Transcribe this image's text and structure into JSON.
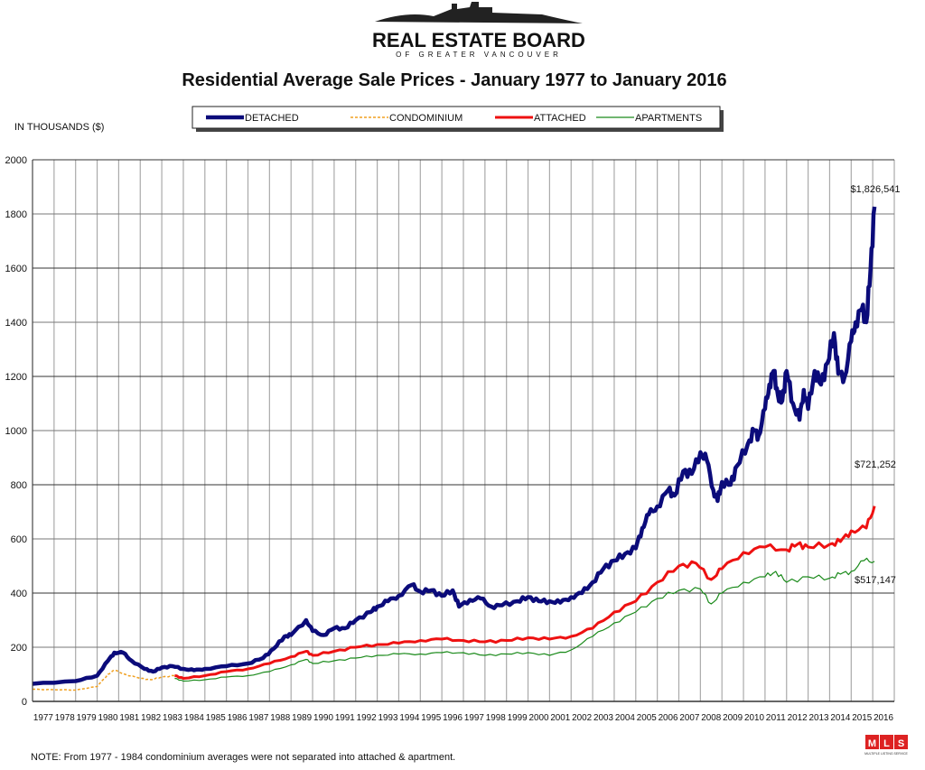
{
  "logo": {
    "line1": "REAL ESTATE BOARD",
    "line2": "OF GREATER VANCOUVER"
  },
  "mls_logo": {
    "letters": "MLS",
    "caption": "MULTIPLE LISTING SERVICE"
  },
  "note": "NOTE:  From 1977 - 1984 condominium averages were not separated into attached & apartment.",
  "chart_data": {
    "type": "line",
    "title": "Residential Average Sale Prices  -  January 1977 to January 2016",
    "ylabel": "IN THOUSANDS ($)",
    "xlabel": "",
    "xlim": [
      1977,
      2017
    ],
    "ylim": [
      0,
      2000
    ],
    "yticks": [
      0,
      200,
      400,
      600,
      800,
      1000,
      1200,
      1400,
      1600,
      1800,
      2000
    ],
    "xticks": [
      "1977",
      "1978",
      "1979",
      "1980",
      "1981",
      "1982",
      "1983",
      "1984",
      "1985",
      "1986",
      "1987",
      "1988",
      "1989",
      "1990",
      "1991",
      "1992",
      "1993",
      "1994",
      "1995",
      "1996",
      "1997",
      "1998",
      "1999",
      "2000",
      "2001",
      "2002",
      "2003",
      "2004",
      "2005",
      "2006",
      "2007",
      "2008",
      "2009",
      "2010",
      "2011",
      "2012",
      "2013",
      "2014",
      "2015",
      "2016"
    ],
    "grid": true,
    "legend_placement": "top-center",
    "series": [
      {
        "name": "DETACHED",
        "color": "#0b0b7a",
        "style": "solid-thick",
        "x": [
          1977,
          1979,
          1980,
          1980.5,
          1980.8,
          1981.2,
          1981.6,
          1982.2,
          1982.6,
          1983,
          1983.5,
          1984,
          1984.5,
          1985,
          1986,
          1987,
          1987.7,
          1988.2,
          1988.7,
          1989,
          1989.7,
          1990,
          1990.5,
          1991,
          1991.5,
          1992,
          1992.7,
          1993,
          1993.5,
          1994,
          1994.6,
          1995,
          1995.5,
          1996,
          1996.5,
          1996.8,
          1997.3,
          1997.8,
          1998.3,
          1998.8,
          1999.5,
          2000,
          2000.5,
          2001,
          2001.5,
          2002,
          2002.5,
          2003,
          2003.5,
          2004,
          2004.5,
          2005,
          2005.3,
          2005.6,
          2006,
          2006.5,
          2006.8,
          2007.2,
          2007.6,
          2008,
          2008.3,
          2008.6,
          2008.8,
          2009,
          2009.4,
          2009.7,
          2010.2,
          2010.5,
          2010.7,
          2011,
          2011.2,
          2011.4,
          2011.6,
          2011.8,
          2012,
          2012.3,
          2012.6,
          2012.8,
          2013,
          2013.3,
          2013.6,
          2013.9,
          2014.2,
          2014.4,
          2014.7,
          2015,
          2015.2,
          2015.5,
          2015.7,
          2015.9,
          2016.08
        ],
        "values": [
          65,
          75,
          95,
          150,
          180,
          180,
          150,
          120,
          110,
          125,
          130,
          120,
          115,
          120,
          130,
          140,
          160,
          195,
          240,
          245,
          300,
          260,
          245,
          270,
          270,
          300,
          330,
          350,
          370,
          390,
          430,
          405,
          410,
          390,
          410,
          350,
          375,
          380,
          350,
          355,
          370,
          385,
          370,
          370,
          365,
          385,
          400,
          440,
          490,
          520,
          545,
          565,
          640,
          690,
          720,
          780,
          760,
          850,
          840,
          920,
          890,
          780,
          740,
          810,
          800,
          870,
          950,
          1000,
          980,
          1080,
          1170,
          1220,
          1130,
          1110,
          1220,
          1100,
          1040,
          1150,
          1080,
          1220,
          1170,
          1250,
          1360,
          1210,
          1200,
          1330,
          1400,
          1450,
          1400,
          1600,
          1826.541
        ],
        "end_label": "$1,826,541"
      },
      {
        "name": "CONDOMINIUM",
        "color": "#f0a020",
        "style": "dashed",
        "x": [
          1977,
          1978,
          1979,
          1980,
          1980.5,
          1980.8,
          1981.3,
          1982,
          1982.5,
          1983,
          1983.6
        ],
        "values": [
          45,
          43,
          42,
          55,
          100,
          115,
          100,
          85,
          80,
          90,
          95
        ]
      },
      {
        "name": "ATTACHED",
        "color": "#ee1111",
        "style": "solid-medium",
        "x": [
          1983.6,
          1984,
          1985,
          1986,
          1987,
          1988,
          1989,
          1989.7,
          1990,
          1991,
          1992,
          1993,
          1994,
          1995,
          1996,
          1997,
          1998,
          1999,
          2000,
          2001,
          2002,
          2003,
          2004,
          2005,
          2006,
          2007,
          2007.8,
          2008.5,
          2009,
          2010,
          2011,
          2012,
          2012.5,
          2013,
          2014,
          2014.5,
          2015,
          2015.7,
          2016.08
        ],
        "values": [
          95,
          85,
          95,
          110,
          120,
          140,
          165,
          185,
          170,
          185,
          200,
          210,
          215,
          225,
          230,
          225,
          220,
          225,
          235,
          230,
          240,
          270,
          330,
          370,
          440,
          500,
          510,
          450,
          490,
          550,
          570,
          560,
          580,
          570,
          580,
          590,
          630,
          640,
          721.252
        ],
        "end_label": "$721,252"
      },
      {
        "name": "APARTMENTS",
        "color": "#1a8a1a",
        "style": "solid-thin",
        "x": [
          1983.6,
          1984,
          1985,
          1986,
          1987,
          1988,
          1989,
          1989.7,
          1990,
          1991,
          1992,
          1993,
          1994,
          1995,
          1996,
          1997,
          1998,
          1999,
          2000,
          2001,
          2002,
          2003,
          2004,
          2005,
          2006,
          2007,
          2008,
          2008.5,
          2009,
          2010,
          2011,
          2011.5,
          2012,
          2013,
          2014,
          2014.5,
          2015,
          2015.6,
          2016.08
        ],
        "values": [
          85,
          75,
          80,
          90,
          95,
          110,
          135,
          155,
          140,
          150,
          160,
          170,
          175,
          175,
          180,
          180,
          170,
          175,
          180,
          170,
          190,
          240,
          290,
          330,
          380,
          410,
          415,
          360,
          400,
          440,
          460,
          480,
          440,
          460,
          455,
          470,
          480,
          520,
          517.147
        ],
        "end_label": "$517,147"
      }
    ]
  }
}
